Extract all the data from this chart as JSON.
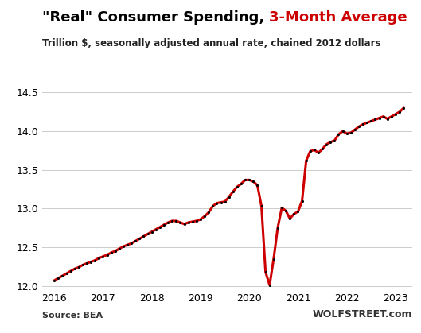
{
  "title_black": "\"Real\" Consumer Spending, ",
  "title_red": "3-Month Average",
  "subtitle": "Trillion $, seasonally adjusted annual rate, chained 2012 dollars",
  "source_left": "Source: BEA",
  "source_right": "WOLFSTREET.com",
  "line_color": "#cc0000",
  "dot_color": "#000000",
  "background_color": "#ffffff",
  "ylim": [
    11.95,
    14.62
  ],
  "yticks": [
    12.0,
    12.5,
    13.0,
    13.5,
    14.0,
    14.5
  ],
  "xlim": [
    2015.75,
    2023.35
  ],
  "xticks": [
    2016,
    2017,
    2018,
    2019,
    2020,
    2021,
    2022,
    2023
  ],
  "data": {
    "dates": [
      2016.0,
      2016.083,
      2016.167,
      2016.25,
      2016.333,
      2016.417,
      2016.5,
      2016.583,
      2016.667,
      2016.75,
      2016.833,
      2016.917,
      2017.0,
      2017.083,
      2017.167,
      2017.25,
      2017.333,
      2017.417,
      2017.5,
      2017.583,
      2017.667,
      2017.75,
      2017.833,
      2017.917,
      2018.0,
      2018.083,
      2018.167,
      2018.25,
      2018.333,
      2018.417,
      2018.5,
      2018.583,
      2018.667,
      2018.75,
      2018.833,
      2018.917,
      2019.0,
      2019.083,
      2019.167,
      2019.25,
      2019.333,
      2019.417,
      2019.5,
      2019.583,
      2019.667,
      2019.75,
      2019.833,
      2019.917,
      2020.0,
      2020.083,
      2020.167,
      2020.25,
      2020.333,
      2020.417,
      2020.5,
      2020.583,
      2020.667,
      2020.75,
      2020.833,
      2020.917,
      2021.0,
      2021.083,
      2021.167,
      2021.25,
      2021.333,
      2021.417,
      2021.5,
      2021.583,
      2021.667,
      2021.75,
      2021.833,
      2021.917,
      2022.0,
      2022.083,
      2022.167,
      2022.25,
      2022.333,
      2022.417,
      2022.5,
      2022.583,
      2022.667,
      2022.75,
      2022.833,
      2022.917,
      2023.0,
      2023.083,
      2023.167
    ],
    "values": [
      12.07,
      12.1,
      12.13,
      12.16,
      12.19,
      12.22,
      12.24,
      12.27,
      12.29,
      12.31,
      12.33,
      12.36,
      12.38,
      12.4,
      12.43,
      12.45,
      12.48,
      12.51,
      12.53,
      12.55,
      12.58,
      12.61,
      12.64,
      12.67,
      12.7,
      12.73,
      12.76,
      12.79,
      12.82,
      12.84,
      12.84,
      12.82,
      12.8,
      12.82,
      12.83,
      12.84,
      12.86,
      12.9,
      12.95,
      13.03,
      13.07,
      13.08,
      13.09,
      13.15,
      13.22,
      13.28,
      13.32,
      13.37,
      13.37,
      13.35,
      13.3,
      13.03,
      12.18,
      12.01,
      12.35,
      12.75,
      13.01,
      12.97,
      12.87,
      12.93,
      12.96,
      13.1,
      13.62,
      13.74,
      13.76,
      13.72,
      13.77,
      13.83,
      13.86,
      13.88,
      13.96,
      14.0,
      13.97,
      13.98,
      14.02,
      14.06,
      14.09,
      14.11,
      14.13,
      14.15,
      14.17,
      14.19,
      14.16,
      14.19,
      14.22,
      14.25,
      14.3
    ]
  }
}
